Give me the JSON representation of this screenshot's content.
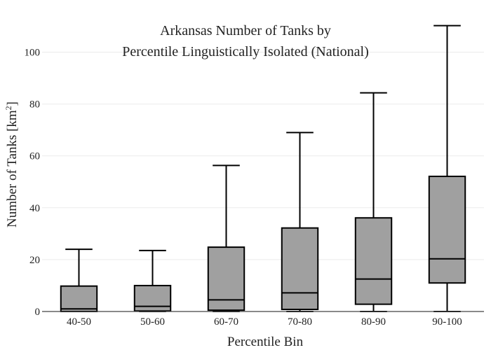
{
  "chart_data": {
    "type": "box",
    "title_lines": [
      "Arkansas Number of Tanks by",
      "Percentile Linguistically Isolated (National)"
    ],
    "xlabel": "Percentile Bin",
    "ylabel_main": "Number of Tanks  [km",
    "ylabel_sup": "2",
    "ylabel_end": "]",
    "ylim": [
      0,
      112
    ],
    "yticks": [
      0,
      20,
      40,
      60,
      80,
      100
    ],
    "grid": true,
    "box_color": "#a0a0a0",
    "categories": [
      "40-50",
      "50-60",
      "60-70",
      "70-80",
      "80-90",
      "90-100"
    ],
    "boxes": [
      {
        "category": "40-50",
        "min": 0,
        "q1": 0,
        "median": 1,
        "q3": 9.8,
        "max": 24
      },
      {
        "category": "50-60",
        "min": 0,
        "q1": 0.2,
        "median": 2,
        "q3": 10,
        "max": 23.5
      },
      {
        "category": "60-70",
        "min": 0,
        "q1": 0.5,
        "median": 4.5,
        "q3": 24.8,
        "max": 56.3
      },
      {
        "category": "70-80",
        "min": 0,
        "q1": 0.8,
        "median": 7.2,
        "q3": 32.2,
        "max": 69
      },
      {
        "category": "80-90",
        "min": 0,
        "q1": 2.8,
        "median": 12.5,
        "q3": 36.1,
        "max": 84.3
      },
      {
        "category": "90-100",
        "min": 0,
        "q1": 11,
        "median": 20.3,
        "q3": 52.1,
        "max": 110.2
      }
    ]
  }
}
